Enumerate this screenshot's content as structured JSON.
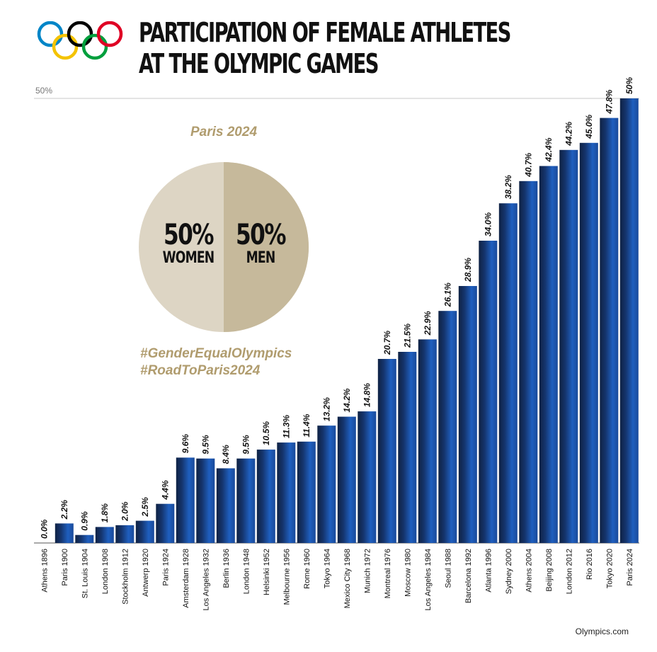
{
  "header": {
    "title_line1": "PARTICIPATION OF FEMALE ATHLETES",
    "title_line2": "AT THE OLYMPIC GAMES"
  },
  "colors": {
    "rings": [
      "#0085c7",
      "#f4c300",
      "#000000",
      "#009f3d",
      "#df0024"
    ],
    "accent_gold": "#b09c6e",
    "pie_women": "#ddd5c4",
    "pie_men": "#c6b99b",
    "bar_dark": "#0f2244",
    "bar_blue": "#1f5fbf"
  },
  "pie": {
    "title": "Paris 2024",
    "women_pct": "50%",
    "women_label": "WOMEN",
    "men_pct": "50%",
    "men_label": "MEN"
  },
  "hashtags": [
    "#GenderEqualOlympics",
    "#RoadToParis2024"
  ],
  "source": "Olympics.com",
  "chart_data": {
    "type": "bar",
    "title": "PARTICIPATION OF FEMALE ATHLETES AT THE OLYMPIC GAMES",
    "xlabel": "",
    "ylabel": "",
    "ylim": [
      0,
      50
    ],
    "reference_line": {
      "value": 50,
      "label": "50%"
    },
    "categories": [
      "Athens 1896",
      "Paris 1900",
      "St. Louis 1904",
      "London 1908",
      "Stockholm 1912",
      "Antwerp 1920",
      "Paris 1924",
      "Amsterdam 1928",
      "Los Angeles 1932",
      "Berlin 1936",
      "London 1948",
      "Helsinki 1952",
      "Melbourne 1956",
      "Rome 1960",
      "Tokyo 1964",
      "Mexico City 1968",
      "Munich 1972",
      "Montreal 1976",
      "Moscow 1980",
      "Los Angeles 1984",
      "Seoul 1988",
      "Barcelona 1992",
      "Atlanta 1996",
      "Sydney 2000",
      "Athens 2004",
      "Beijing 2008",
      "London 2012",
      "Rio 2016",
      "Tokyo 2020",
      "Paris 2024"
    ],
    "values": [
      0.0,
      2.2,
      0.9,
      1.8,
      2.0,
      2.5,
      4.4,
      9.6,
      9.5,
      8.4,
      9.5,
      10.5,
      11.3,
      11.4,
      13.2,
      14.2,
      14.8,
      20.7,
      21.5,
      22.9,
      26.1,
      28.9,
      34.0,
      38.2,
      40.7,
      42.4,
      44.2,
      45.0,
      47.8,
      50
    ],
    "value_labels": [
      "0.0%",
      "2.2%",
      "0.9%",
      "1.8%",
      "2.0%",
      "2.5%",
      "4.4%",
      "9.6%",
      "9.5%",
      "8.4%",
      "9.5%",
      "10.5%",
      "11.3%",
      "11.4%",
      "13.2%",
      "14.2%",
      "14.8%",
      "20.7%",
      "21.5%",
      "22.9%",
      "26.1%",
      "28.9%",
      "34.0%",
      "38.2%",
      "40.7%",
      "42.4%",
      "44.2%",
      "45.0%",
      "47.8%",
      "50%"
    ],
    "grid": false,
    "legend": "none"
  }
}
